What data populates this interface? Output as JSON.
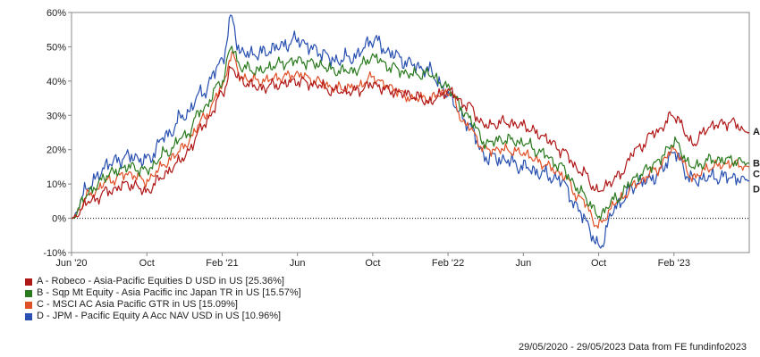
{
  "chart_data": {
    "type": "line",
    "title": "",
    "xlabel": "",
    "ylabel": "",
    "ylim": [
      -10,
      60
    ],
    "y_ticks": [
      "60%",
      "50%",
      "40%",
      "30%",
      "20%",
      "10%",
      "0%",
      "-10%"
    ],
    "y_tick_values": [
      60,
      50,
      40,
      30,
      20,
      10,
      0,
      -10
    ],
    "x_tick_labels": [
      "Jun '20",
      "Oct",
      "Feb '21",
      "Jun",
      "Oct",
      "Feb '22",
      "Jun",
      "Oct",
      "Feb '23"
    ],
    "x_tick_positions": [
      0,
      4,
      8,
      12,
      16,
      20,
      24,
      28,
      32
    ],
    "x_range": [
      0,
      36
    ],
    "zero_line": true,
    "grid": false,
    "legend_position": "bottom-left",
    "months": [
      0,
      1,
      2,
      3,
      4,
      5,
      6,
      7,
      8,
      8.5,
      9,
      10,
      11,
      12,
      13,
      14,
      15,
      16,
      17,
      18,
      19,
      20,
      21,
      22,
      23,
      24,
      25,
      26,
      27,
      28,
      29,
      30,
      31,
      32,
      33,
      34,
      35,
      36
    ],
    "series": [
      {
        "name": "A - Robeco - Asia-Pacific Equities D USD in US [25.36%]",
        "end_label": "A",
        "color": "#b01818",
        "values": [
          0,
          5,
          8,
          10,
          8,
          13,
          18,
          27,
          36,
          44,
          40,
          38,
          39,
          40,
          39,
          37,
          37,
          39,
          37,
          36,
          34,
          37,
          33,
          27,
          28,
          27,
          24,
          20,
          14,
          8,
          12,
          20,
          25,
          30,
          22,
          27,
          28,
          25
        ]
      },
      {
        "name": "B - Sqp Mt Equity - Asia Pacific inc Japan TR in US [15.57%]",
        "end_label": "B",
        "color": "#2a7a1e",
        "values": [
          0,
          8,
          13,
          15,
          14,
          19,
          24,
          32,
          40,
          50,
          44,
          43,
          45,
          46,
          45,
          43,
          43,
          47,
          44,
          42,
          42,
          38,
          30,
          22,
          23,
          22,
          19,
          15,
          8,
          1,
          6,
          12,
          16,
          22,
          15,
          17,
          17,
          16
        ]
      },
      {
        "name": "C - MSCI AC Asia Pacific GTR in US [15.09%]",
        "end_label": "C",
        "color": "#e05028",
        "values": [
          0,
          7,
          11,
          13,
          11,
          16,
          21,
          29,
          38,
          48,
          41,
          40,
          41,
          42,
          40,
          38,
          38,
          41,
          38,
          35,
          35,
          37,
          27,
          20,
          20,
          19,
          16,
          13,
          6,
          -2,
          5,
          10,
          14,
          20,
          12,
          15,
          16,
          15
        ]
      },
      {
        "name": "D - JPM - Pacific Equity A Acc NAV USD in US [10.96%]",
        "end_label": "D",
        "color": "#2850b0",
        "values": [
          0,
          10,
          16,
          18,
          17,
          24,
          30,
          37,
          46,
          58,
          48,
          48,
          50,
          52,
          49,
          46,
          47,
          52,
          48,
          45,
          43,
          36,
          28,
          18,
          17,
          15,
          13,
          11,
          2,
          -8,
          4,
          10,
          12,
          19,
          11,
          12,
          12,
          11
        ]
      }
    ]
  },
  "footer": "29/05/2020 - 29/05/2023 Data from FE fundinfo2023"
}
